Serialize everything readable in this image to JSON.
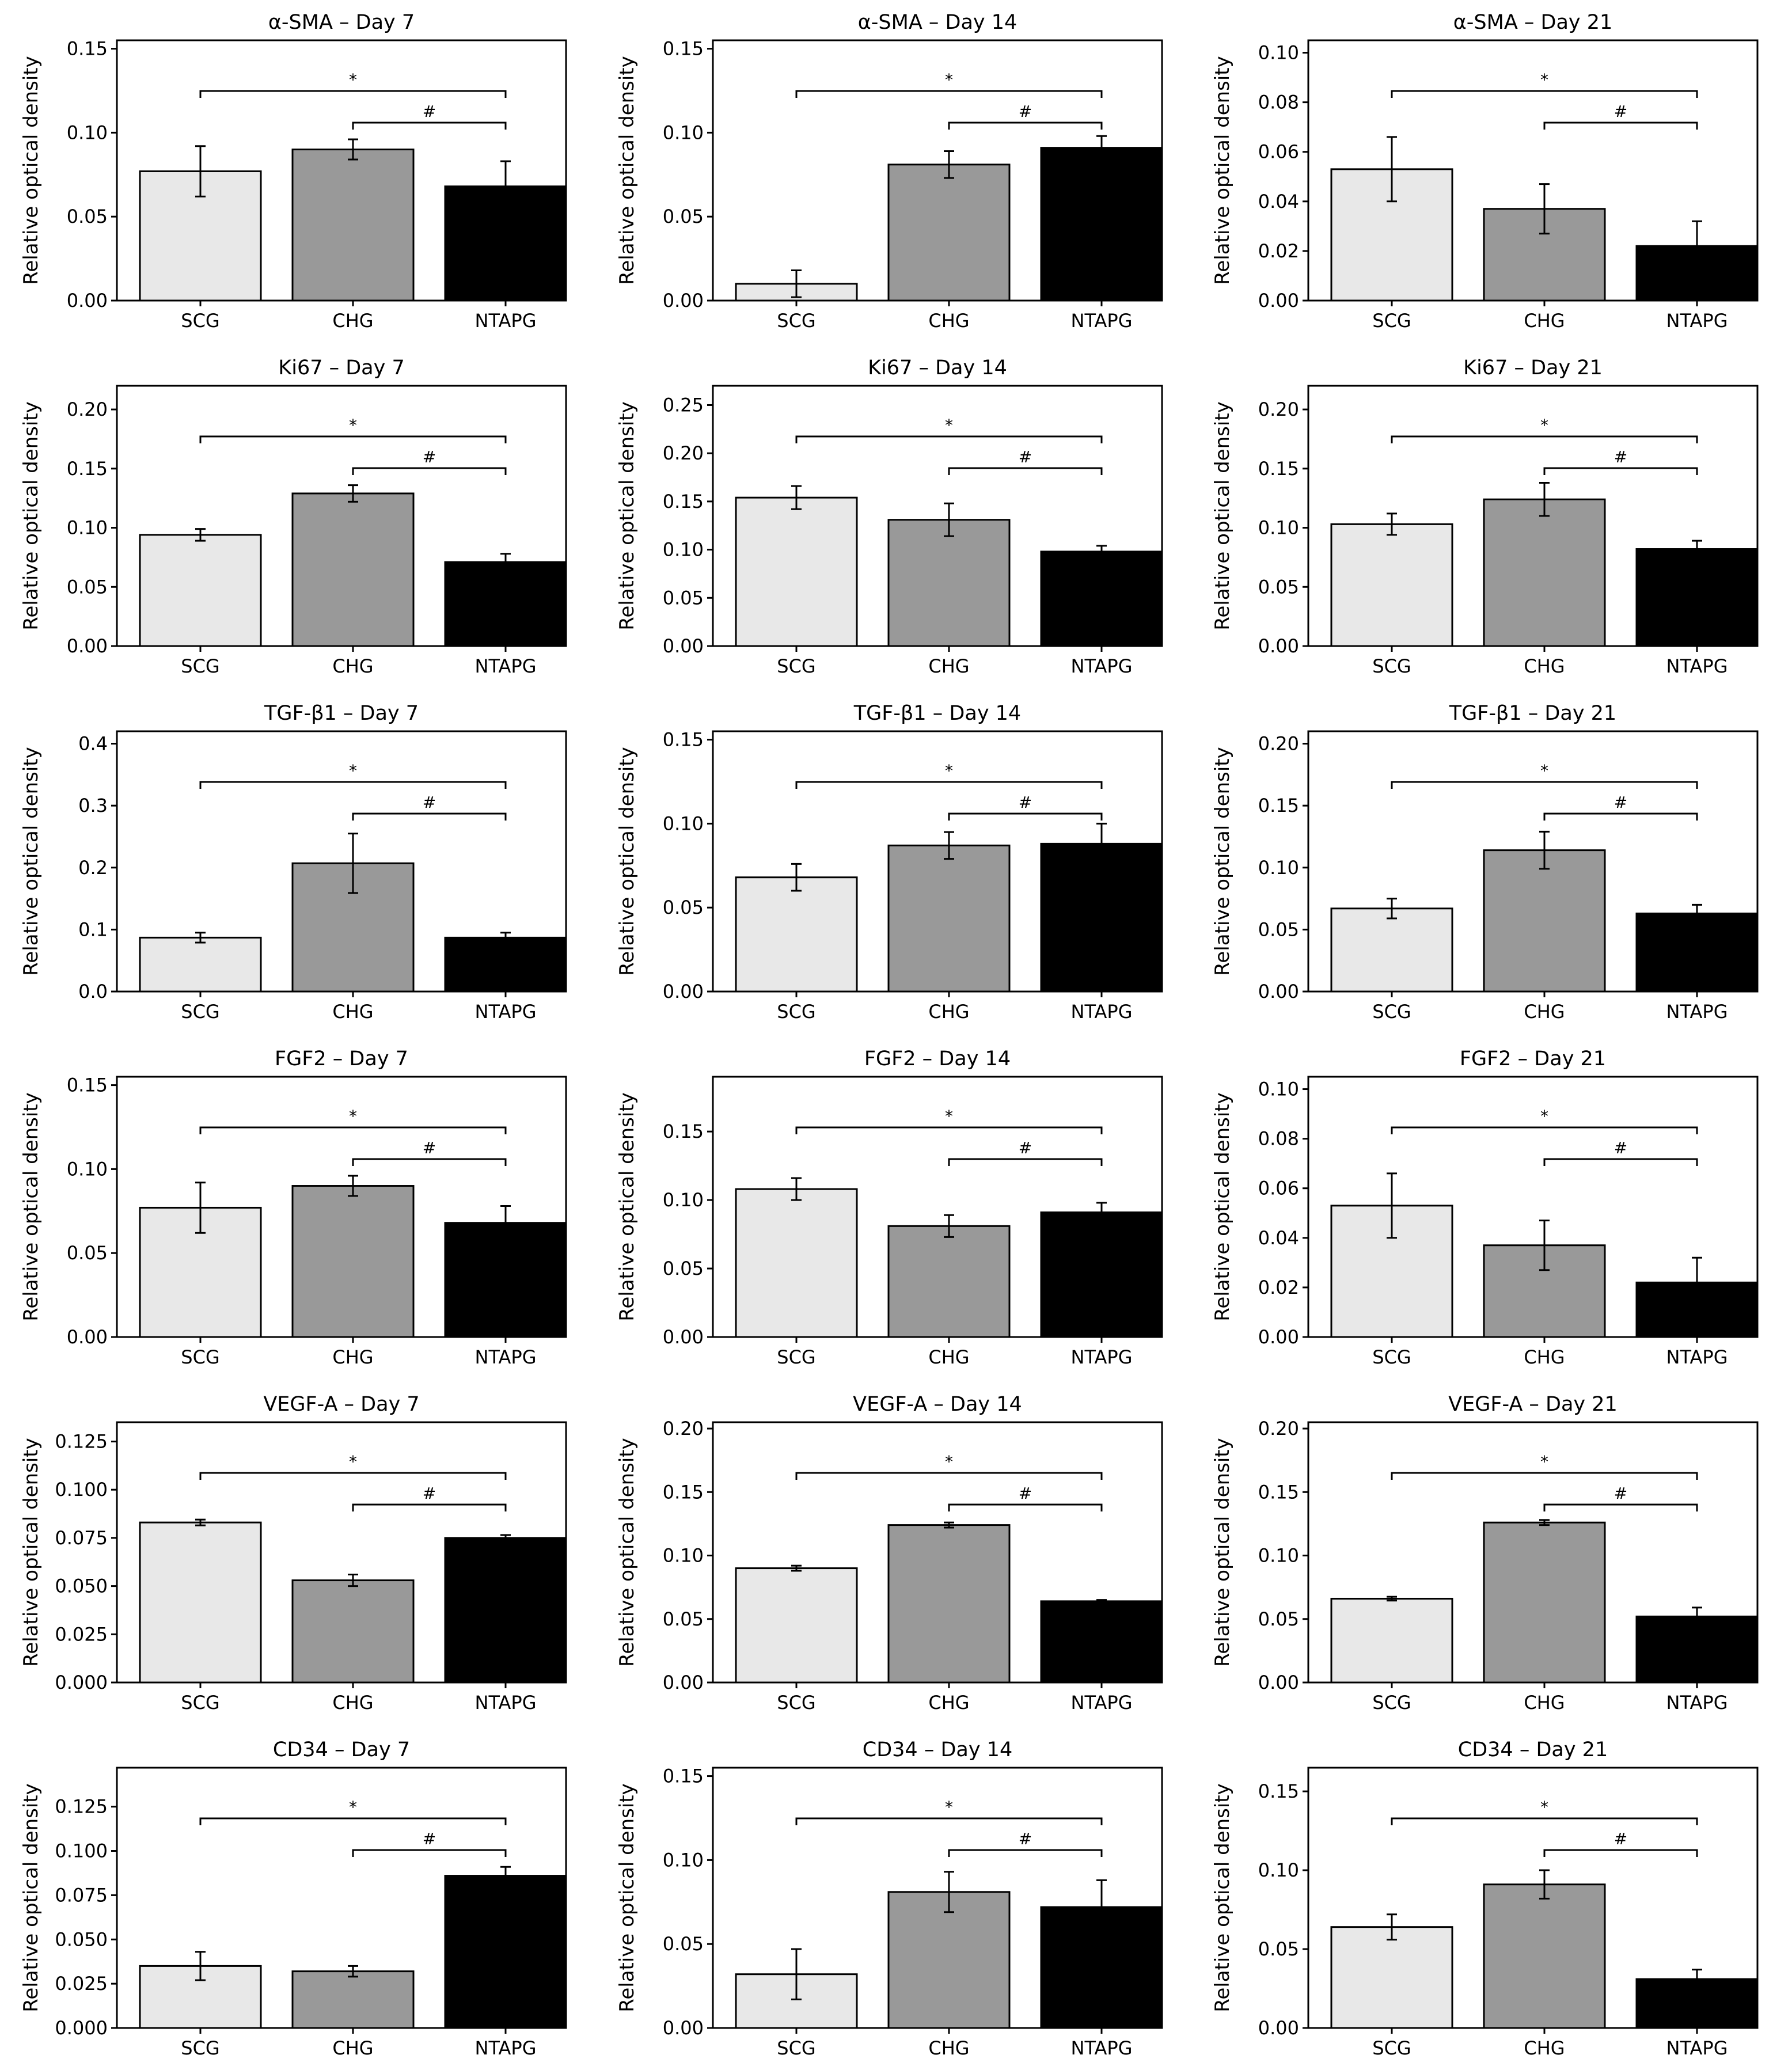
{
  "figure": {
    "ylabel": "Relative optical density",
    "groups": [
      "SCG",
      "CHG",
      "NTAPG"
    ],
    "group_colors": [
      "#e8e8e8",
      "#999999",
      "#000000"
    ],
    "significance": {
      "star": "*",
      "hash": "#"
    }
  },
  "chart_data": [
    {
      "type": "bar",
      "title": "α-SMA – Day 7",
      "categories": [
        "SCG",
        "CHG",
        "NTAPG"
      ],
      "values": [
        0.077,
        0.09,
        0.068
      ],
      "errors": [
        0.015,
        0.006,
        0.015
      ],
      "ylim": [
        0,
        0.155
      ],
      "yticks": [
        "0.00",
        "0.05",
        "0.10",
        "0.15"
      ],
      "ylabel": "Relative optical density"
    },
    {
      "type": "bar",
      "title": "α-SMA – Day 14",
      "categories": [
        "SCG",
        "CHG",
        "NTAPG"
      ],
      "values": [
        0.01,
        0.081,
        0.091
      ],
      "errors": [
        0.008,
        0.008,
        0.007
      ],
      "ylim": [
        0,
        0.155
      ],
      "yticks": [
        "0.00",
        "0.05",
        "0.10",
        "0.15"
      ],
      "ylabel": "Relative optical density"
    },
    {
      "type": "bar",
      "title": "α-SMA – Day 21",
      "categories": [
        "SCG",
        "CHG",
        "NTAPG"
      ],
      "values": [
        0.053,
        0.037,
        0.022
      ],
      "errors": [
        0.013,
        0.01,
        0.01
      ],
      "ylim": [
        0,
        0.105
      ],
      "yticks": [
        "0.00",
        "0.02",
        "0.04",
        "0.06",
        "0.08",
        "0.10"
      ],
      "ylabel": "Relative optical density"
    },
    {
      "type": "bar",
      "title": "Ki67 – Day 7",
      "categories": [
        "SCG",
        "CHG",
        "NTAPG"
      ],
      "values": [
        0.094,
        0.129,
        0.071
      ],
      "errors": [
        0.005,
        0.007,
        0.007
      ],
      "ylim": [
        0,
        0.22
      ],
      "yticks": [
        "0.00",
        "0.05",
        "0.10",
        "0.15",
        "0.20"
      ],
      "ylabel": "Relative optical density"
    },
    {
      "type": "bar",
      "title": "Ki67 – Day 14",
      "categories": [
        "SCG",
        "CHG",
        "NTAPG"
      ],
      "values": [
        0.154,
        0.131,
        0.098
      ],
      "errors": [
        0.012,
        0.017,
        0.006
      ],
      "ylim": [
        0,
        0.27
      ],
      "yticks": [
        "0.00",
        "0.05",
        "0.10",
        "0.15",
        "0.20",
        "0.25"
      ],
      "ylabel": "Relative optical density"
    },
    {
      "type": "bar",
      "title": "Ki67 – Day 21",
      "categories": [
        "SCG",
        "CHG",
        "NTAPG"
      ],
      "values": [
        0.103,
        0.124,
        0.082
      ],
      "errors": [
        0.009,
        0.014,
        0.007
      ],
      "ylim": [
        0,
        0.22
      ],
      "yticks": [
        "0.00",
        "0.05",
        "0.10",
        "0.15",
        "0.20"
      ],
      "ylabel": "Relative optical density"
    },
    {
      "type": "bar",
      "title": "TGF-β1 – Day 7",
      "categories": [
        "SCG",
        "CHG",
        "NTAPG"
      ],
      "values": [
        0.087,
        0.207,
        0.087
      ],
      "errors": [
        0.008,
        0.048,
        0.008
      ],
      "ylim": [
        0,
        0.42
      ],
      "yticks": [
        "0.0",
        "0.1",
        "0.2",
        "0.3",
        "0.4"
      ],
      "ylabel": "Relative optical density"
    },
    {
      "type": "bar",
      "title": "TGF-β1 – Day 14",
      "categories": [
        "SCG",
        "CHG",
        "NTAPG"
      ],
      "values": [
        0.068,
        0.087,
        0.088
      ],
      "errors": [
        0.008,
        0.008,
        0.012
      ],
      "ylim": [
        0,
        0.155
      ],
      "yticks": [
        "0.00",
        "0.05",
        "0.10",
        "0.15"
      ],
      "ylabel": "Relative optical density"
    },
    {
      "type": "bar",
      "title": "TGF-β1 – Day 21",
      "categories": [
        "SCG",
        "CHG",
        "NTAPG"
      ],
      "values": [
        0.067,
        0.114,
        0.063
      ],
      "errors": [
        0.008,
        0.015,
        0.007
      ],
      "ylim": [
        0,
        0.21
      ],
      "yticks": [
        "0.00",
        "0.05",
        "0.10",
        "0.15",
        "0.20"
      ],
      "ylabel": "Relative optical density"
    },
    {
      "type": "bar",
      "title": "FGF2 – Day 7",
      "categories": [
        "SCG",
        "CHG",
        "NTAPG"
      ],
      "values": [
        0.077,
        0.09,
        0.068
      ],
      "errors": [
        0.015,
        0.006,
        0.01
      ],
      "ylim": [
        0,
        0.155
      ],
      "yticks": [
        "0.00",
        "0.05",
        "0.10",
        "0.15"
      ],
      "ylabel": "Relative optical density"
    },
    {
      "type": "bar",
      "title": "FGF2 – Day 14",
      "categories": [
        "SCG",
        "CHG",
        "NTAPG"
      ],
      "values": [
        0.108,
        0.081,
        0.091
      ],
      "errors": [
        0.008,
        0.008,
        0.007
      ],
      "ylim": [
        0,
        0.19
      ],
      "yticks": [
        "0.00",
        "0.05",
        "0.10",
        "0.15"
      ],
      "ylabel": "Relative optical density"
    },
    {
      "type": "bar",
      "title": "FGF2 – Day 21",
      "categories": [
        "SCG",
        "CHG",
        "NTAPG"
      ],
      "values": [
        0.053,
        0.037,
        0.022
      ],
      "errors": [
        0.013,
        0.01,
        0.01
      ],
      "ylim": [
        0,
        0.105
      ],
      "yticks": [
        "0.00",
        "0.02",
        "0.04",
        "0.06",
        "0.08",
        "0.10"
      ],
      "ylabel": "Relative optical density"
    },
    {
      "type": "bar",
      "title": "VEGF-A – Day 7",
      "categories": [
        "SCG",
        "CHG",
        "NTAPG"
      ],
      "values": [
        0.083,
        0.053,
        0.075
      ],
      "errors": [
        0.0015,
        0.003,
        0.0015
      ],
      "ylim": [
        0,
        0.135
      ],
      "yticks": [
        "0.000",
        "0.025",
        "0.050",
        "0.075",
        "0.100",
        "0.125"
      ],
      "ylabel": "Relative optical density"
    },
    {
      "type": "bar",
      "title": "VEGF-A – Day 14",
      "categories": [
        "SCG",
        "CHG",
        "NTAPG"
      ],
      "values": [
        0.09,
        0.124,
        0.064
      ],
      "errors": [
        0.002,
        0.002,
        0.001
      ],
      "ylim": [
        0,
        0.205
      ],
      "yticks": [
        "0.00",
        "0.05",
        "0.10",
        "0.15",
        "0.20"
      ],
      "ylabel": "Relative optical density"
    },
    {
      "type": "bar",
      "title": "VEGF-A – Day 21",
      "categories": [
        "SCG",
        "CHG",
        "NTAPG"
      ],
      "values": [
        0.066,
        0.126,
        0.052
      ],
      "errors": [
        0.0015,
        0.002,
        0.007
      ],
      "ylim": [
        0,
        0.205
      ],
      "yticks": [
        "0.00",
        "0.05",
        "0.10",
        "0.15",
        "0.20"
      ],
      "ylabel": "Relative optical density"
    },
    {
      "type": "bar",
      "title": "CD34 – Day 7",
      "categories": [
        "SCG",
        "CHG",
        "NTAPG"
      ],
      "values": [
        0.035,
        0.032,
        0.086
      ],
      "errors": [
        0.008,
        0.003,
        0.005
      ],
      "ylim": [
        0,
        0.147
      ],
      "yticks": [
        "0.000",
        "0.025",
        "0.050",
        "0.075",
        "0.100",
        "0.125"
      ],
      "ylabel": "Relative optical density"
    },
    {
      "type": "bar",
      "title": "CD34 – Day 14",
      "categories": [
        "SCG",
        "CHG",
        "NTAPG"
      ],
      "values": [
        0.032,
        0.081,
        0.072
      ],
      "errors": [
        0.015,
        0.012,
        0.016
      ],
      "ylim": [
        0,
        0.155
      ],
      "yticks": [
        "0.00",
        "0.05",
        "0.10",
        "0.15"
      ],
      "ylabel": "Relative optical density"
    },
    {
      "type": "bar",
      "title": "CD34 – Day 21",
      "categories": [
        "SCG",
        "CHG",
        "NTAPG"
      ],
      "values": [
        0.064,
        0.091,
        0.031
      ],
      "errors": [
        0.008,
        0.009,
        0.006
      ],
      "ylim": [
        0,
        0.165
      ],
      "yticks": [
        "0.00",
        "0.05",
        "0.10",
        "0.15"
      ],
      "ylabel": "Relative optical density"
    }
  ]
}
